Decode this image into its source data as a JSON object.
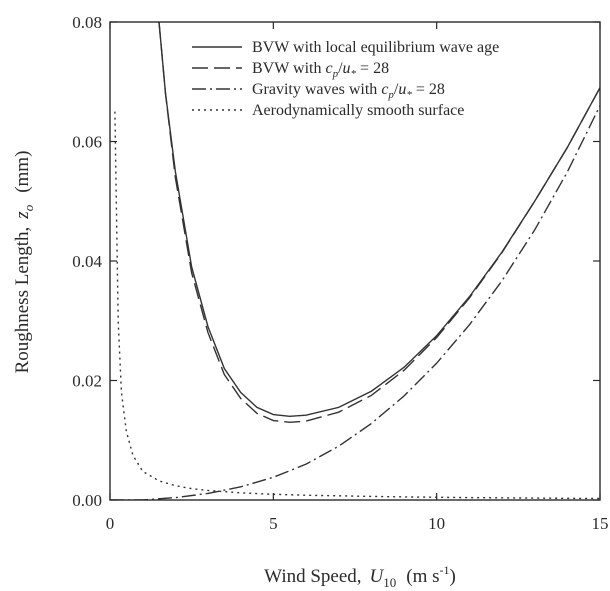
{
  "chart_data": {
    "type": "line",
    "title": "",
    "xlabel_parts": [
      "Wind Speed,",
      "U",
      "10",
      "(m s",
      "-1",
      ")"
    ],
    "ylabel_parts": [
      "Roughness Length,",
      "z",
      "o",
      "(mm)"
    ],
    "xlim": [
      0,
      15
    ],
    "ylim": [
      0,
      0.08
    ],
    "xticks": [
      "0",
      "5",
      "10",
      "15"
    ],
    "yticks": [
      "0.00",
      "0.02",
      "0.04",
      "0.06",
      "0.08"
    ],
    "grid": false,
    "legend_position": "top-right",
    "series": [
      {
        "name": "BVW with local equilibrium wave age",
        "style": "solid",
        "x": [
          1.5,
          1.7,
          2.0,
          2.5,
          3.0,
          3.5,
          4.0,
          4.5,
          5.0,
          5.5,
          6.0,
          7.0,
          8.0,
          9.0,
          10.0,
          11.0,
          12.0,
          13.0,
          14.0,
          15.0
        ],
        "y": [
          0.08,
          0.068,
          0.055,
          0.039,
          0.029,
          0.022,
          0.018,
          0.0155,
          0.0143,
          0.014,
          0.0142,
          0.0155,
          0.0182,
          0.0222,
          0.0275,
          0.034,
          0.0415,
          0.05,
          0.059,
          0.069
        ]
      },
      {
        "name": "BVW with c_p/u_* = 28",
        "style": "dashed",
        "x": [
          1.5,
          1.7,
          2.0,
          2.5,
          3.0,
          3.5,
          4.0,
          4.5,
          5.0,
          5.5,
          6.0,
          7.0,
          8.0,
          9.0,
          10.0,
          11.0,
          12.0,
          13.0,
          14.0,
          15.0
        ],
        "y": [
          0.08,
          0.068,
          0.054,
          0.038,
          0.028,
          0.021,
          0.017,
          0.0145,
          0.0133,
          0.013,
          0.0132,
          0.0147,
          0.0175,
          0.0217,
          0.0272,
          0.0338,
          0.0414,
          0.05,
          0.059,
          0.069
        ]
      },
      {
        "name": "Gravity waves with c_p/u_* = 28",
        "style": "dashdot",
        "x": [
          0,
          1.0,
          2.0,
          3.0,
          4.0,
          5.0,
          6.0,
          7.0,
          8.0,
          9.0,
          10.0,
          11.0,
          12.0,
          13.0,
          14.0,
          15.0
        ],
        "y": [
          0,
          0,
          0.0004,
          0.0011,
          0.0022,
          0.0038,
          0.006,
          0.009,
          0.0128,
          0.0174,
          0.0229,
          0.0293,
          0.0367,
          0.0452,
          0.0549,
          0.066
        ]
      },
      {
        "name": "Aerodynamically smooth surface",
        "style": "dotted",
        "x": [
          0.15,
          0.25,
          0.35,
          0.5,
          0.7,
          1.0,
          1.5,
          2.0,
          2.5,
          3.0,
          4.0,
          5.0,
          6.0,
          7.0,
          8.0,
          9.0,
          10.0,
          11.0,
          12.0,
          13.0,
          14.0,
          15.0
        ],
        "y": [
          0.065,
          0.03,
          0.018,
          0.0115,
          0.0075,
          0.0048,
          0.0032,
          0.0024,
          0.0019,
          0.0016,
          0.0012,
          0.00095,
          0.0008,
          0.0007,
          0.0006,
          0.00052,
          0.00046,
          0.0004,
          0.00036,
          0.00032,
          0.00028,
          0.00025
        ]
      }
    ]
  }
}
